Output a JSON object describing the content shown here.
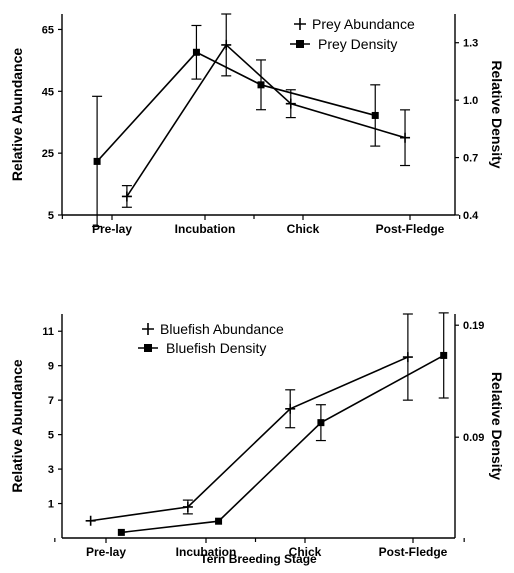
{
  "chart_data": [
    {
      "type": "line",
      "categories": [
        "Pre-lay",
        "Incubation",
        "Chick",
        "Post-Fledge"
      ],
      "xlabel": "",
      "ylabel_left": "Relative Abundance",
      "ylabel_right": "Relative Density",
      "ylim_left": [
        5,
        70
      ],
      "yticks_left": [
        "5",
        "25",
        "45",
        "65"
      ],
      "ylim_right": [
        0.4,
        1.45
      ],
      "yticks_right": [
        "0.4",
        "0.7",
        "1.0",
        "1.3"
      ],
      "legend_position": "top-right",
      "series": [
        {
          "name": "Prey Abundance",
          "marker": "plus",
          "axis": "left",
          "x": [
            0.15,
            1.15,
            1.8,
            2.95
          ],
          "values": [
            11,
            60,
            41,
            30
          ],
          "errors": [
            3.5,
            10,
            4.5,
            9
          ]
        },
        {
          "name": "Prey Density",
          "marker": "square",
          "axis": "right",
          "x": [
            -0.15,
            0.85,
            1.5,
            2.65
          ],
          "values": [
            0.68,
            1.25,
            1.08,
            0.92
          ],
          "errors": [
            0.34,
            0.14,
            0.13,
            0.16
          ]
        }
      ]
    },
    {
      "type": "line",
      "categories": [
        "Pre-lay",
        "Incubation",
        "Chick",
        "Post-Fledge"
      ],
      "xlabel": "Tern Breeding Stage",
      "ylabel_left": "Relative Abundance",
      "ylabel_right": "Relative Density",
      "ylim_left": [
        -1,
        12
      ],
      "yticks_left": [
        "1",
        "3",
        "5",
        "7",
        "9",
        "11"
      ],
      "ylim_right": [
        0,
        0.2
      ],
      "yticks_right": [
        "0.09",
        "0.19"
      ],
      "legend_position": "top-left",
      "series": [
        {
          "name": "Bluefish Abundance",
          "marker": "plus",
          "axis": "left",
          "x": [
            -0.15,
            0.8,
            1.8,
            2.95
          ],
          "values": [
            0,
            0.8,
            6.5,
            9.5
          ],
          "errors": [
            0,
            0.4,
            1.1,
            2.5
          ]
        },
        {
          "name": "Bluefish Density",
          "marker": "square",
          "axis": "right",
          "x": [
            0.15,
            1.1,
            2.1,
            3.3
          ],
          "values": [
            0.005,
            0.015,
            0.103,
            0.163
          ],
          "errors": [
            0,
            0,
            0.016,
            0.038
          ]
        }
      ]
    }
  ]
}
